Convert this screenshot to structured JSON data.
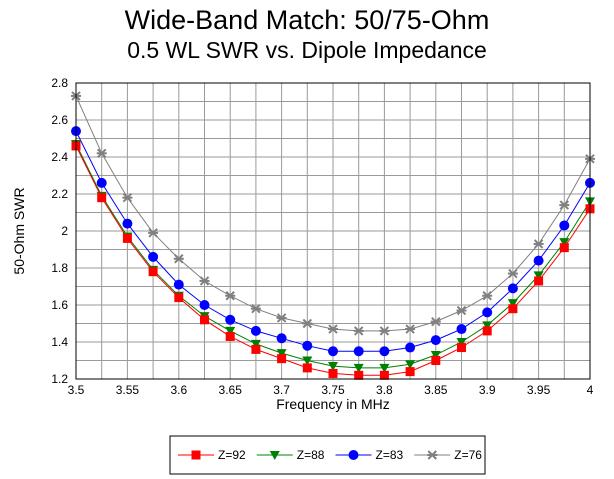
{
  "chart_data": {
    "type": "line",
    "title": "Wide-Band Match:  50/75-Ohm",
    "subtitle": "0.5 WL SWR vs. Dipole Impedance",
    "xlabel": "Frequency in MHz",
    "ylabel": "50-Ohm SWR",
    "xlim": [
      3.5,
      4.0
    ],
    "ylim": [
      1.2,
      2.8
    ],
    "x_ticks": [
      "3.5",
      "3.55",
      "3.6",
      "3.65",
      "3.7",
      "3.75",
      "3.8",
      "3.85",
      "3.9",
      "3.95",
      "4"
    ],
    "y_ticks": [
      "1.2",
      "1.4",
      "1.6",
      "1.8",
      "2",
      "2.2",
      "2.4",
      "2.6",
      "2.8"
    ],
    "grid": true,
    "legend_position": "bottom",
    "x": [
      3.5,
      3.525,
      3.55,
      3.575,
      3.6,
      3.625,
      3.65,
      3.675,
      3.7,
      3.725,
      3.75,
      3.775,
      3.8,
      3.825,
      3.85,
      3.875,
      3.9,
      3.925,
      3.95,
      3.975,
      4.0
    ],
    "series": [
      {
        "name": "Z=92",
        "color": "#ff0000",
        "marker": "square",
        "values": [
          2.46,
          2.18,
          1.96,
          1.78,
          1.64,
          1.52,
          1.43,
          1.36,
          1.31,
          1.26,
          1.23,
          1.22,
          1.22,
          1.24,
          1.3,
          1.37,
          1.46,
          1.58,
          1.73,
          1.91,
          2.12
        ]
      },
      {
        "name": "Z=88",
        "color": "#008000",
        "marker": "triangle-down",
        "values": [
          2.47,
          2.19,
          1.97,
          1.79,
          1.65,
          1.54,
          1.46,
          1.39,
          1.34,
          1.3,
          1.27,
          1.26,
          1.26,
          1.28,
          1.33,
          1.4,
          1.49,
          1.61,
          1.76,
          1.94,
          2.16
        ]
      },
      {
        "name": "Z=83",
        "color": "#0000ff",
        "marker": "circle",
        "values": [
          2.54,
          2.26,
          2.04,
          1.86,
          1.71,
          1.6,
          1.52,
          1.46,
          1.42,
          1.38,
          1.35,
          1.35,
          1.35,
          1.37,
          1.41,
          1.47,
          1.56,
          1.69,
          1.84,
          2.03,
          2.26
        ]
      },
      {
        "name": "Z=76",
        "color": "#808080",
        "marker": "star",
        "values": [
          2.73,
          2.42,
          2.18,
          1.99,
          1.85,
          1.73,
          1.65,
          1.58,
          1.53,
          1.5,
          1.47,
          1.46,
          1.46,
          1.47,
          1.51,
          1.57,
          1.65,
          1.77,
          1.93,
          2.14,
          2.39
        ]
      }
    ]
  }
}
